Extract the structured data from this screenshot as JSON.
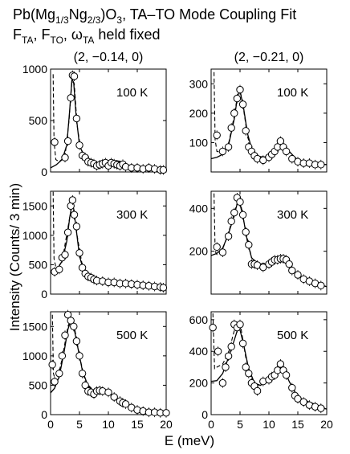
{
  "title": {
    "line1_prefix": "Pb(Mg",
    "line1_sub1": "1/3",
    "line1_mid1": "Ng",
    "line1_sub2": "2/3",
    "line1_mid2": ")O",
    "line1_sub3": "3",
    "line1_suffix": ", TA–TO Mode Coupling Fit",
    "line2_a": "F",
    "line2_sub_a": "TA",
    "line2_b": ", F",
    "line2_sub_b": "TO",
    "line2_c": ", ω",
    "line2_sub_c": "TA",
    "line2_d": " held fixed"
  },
  "columns": [
    "(2, −0.14, 0)",
    "(2, −0.21, 0)"
  ],
  "xlabel": "E (meV)",
  "ylabel": "Intensity (Counts/ 3 min)",
  "chart_data": [
    {
      "type": "scatter",
      "column": "(2, −0.14, 0)",
      "temperature": "100 K",
      "xlim": [
        0,
        20
      ],
      "ylim": [
        0,
        1000
      ],
      "yticks": [
        0,
        500,
        1000
      ],
      "xticks": [
        0,
        5,
        10,
        15,
        20
      ],
      "x": [
        0.7,
        2.5,
        3.0,
        3.5,
        3.8,
        4.1,
        4.5,
        5.0,
        5.5,
        6.0,
        6.5,
        7.0,
        7.5,
        8.0,
        8.5,
        9.0,
        9.5,
        10.0,
        10.5,
        11.0,
        11.5,
        12.0,
        12.5,
        13.0,
        14.0,
        15.0,
        16.0,
        17.0,
        18.0,
        19.0,
        19.5
      ],
      "y": [
        290,
        140,
        300,
        720,
        940,
        930,
        520,
        260,
        160,
        140,
        100,
        90,
        80,
        60,
        70,
        80,
        90,
        60,
        90,
        80,
        70,
        60,
        75,
        50,
        40,
        40,
        30,
        40,
        30,
        20,
        20
      ],
      "fit_solid": [
        [
          0,
          40
        ],
        [
          1,
          70
        ],
        [
          2,
          120
        ],
        [
          2.8,
          260
        ],
        [
          3.3,
          600
        ],
        [
          3.7,
          900
        ],
        [
          4.0,
          870
        ],
        [
          4.4,
          560
        ],
        [
          5.0,
          260
        ],
        [
          5.8,
          150
        ],
        [
          7,
          100
        ],
        [
          8,
          80
        ],
        [
          9,
          85
        ],
        [
          10,
          95
        ],
        [
          11,
          110
        ],
        [
          12,
          105
        ],
        [
          13,
          80
        ],
        [
          14,
          55
        ],
        [
          15,
          40
        ],
        [
          17,
          30
        ],
        [
          20,
          20
        ]
      ],
      "fit_dashed": [
        [
          0.45,
          950
        ],
        [
          0.6,
          300
        ],
        [
          0.9,
          120
        ],
        [
          1.5,
          100
        ],
        [
          2.5,
          150
        ],
        [
          3.2,
          500
        ],
        [
          3.7,
          880
        ],
        [
          4.1,
          860
        ],
        [
          4.6,
          450
        ],
        [
          5.2,
          230
        ],
        [
          6,
          150
        ],
        [
          7,
          100
        ],
        [
          9,
          80
        ],
        [
          11,
          100
        ],
        [
          12,
          95
        ],
        [
          14,
          55
        ],
        [
          16,
          35
        ],
        [
          20,
          20
        ]
      ]
    },
    {
      "type": "scatter",
      "column": "(2, −0.21, 0)",
      "temperature": "100 K",
      "xlim": [
        0,
        20
      ],
      "ylim": [
        0,
        350
      ],
      "yticks": [
        100,
        200,
        300
      ],
      "xticks": [
        0,
        5,
        10,
        15,
        20
      ],
      "x": [
        1,
        2,
        3,
        3.5,
        4,
        4.5,
        5,
        5.5,
        6,
        6.5,
        7,
        7.5,
        8,
        9,
        10,
        10.5,
        11,
        11.5,
        12,
        12.5,
        13,
        14,
        15,
        16,
        17,
        18,
        19
      ],
      "y": [
        125,
        70,
        85,
        150,
        200,
        250,
        280,
        230,
        140,
        85,
        70,
        55,
        45,
        40,
        50,
        60,
        70,
        85,
        105,
        85,
        70,
        45,
        35,
        30,
        30,
        25,
        25
      ],
      "fit_solid": [
        [
          0,
          45
        ],
        [
          1,
          50
        ],
        [
          2,
          60
        ],
        [
          3,
          90
        ],
        [
          4,
          180
        ],
        [
          4.6,
          260
        ],
        [
          5.0,
          275
        ],
        [
          5.6,
          220
        ],
        [
          6.3,
          130
        ],
        [
          7,
          80
        ],
        [
          8,
          55
        ],
        [
          9,
          50
        ],
        [
          10,
          55
        ],
        [
          11,
          75
        ],
        [
          12,
          98
        ],
        [
          12.6,
          95
        ],
        [
          13.5,
          70
        ],
        [
          15,
          40
        ],
        [
          17,
          30
        ],
        [
          20,
          25
        ]
      ],
      "fit_dashed": [
        [
          0.5,
          340
        ],
        [
          0.7,
          110
        ],
        [
          1,
          70
        ],
        [
          2,
          65
        ],
        [
          3,
          95
        ],
        [
          4,
          190
        ],
        [
          4.6,
          265
        ],
        [
          5.0,
          280
        ],
        [
          5.6,
          215
        ],
        [
          6.3,
          120
        ],
        [
          7,
          75
        ],
        [
          8,
          50
        ],
        [
          10,
          55
        ],
        [
          12,
          100
        ],
        [
          13.5,
          70
        ],
        [
          15,
          40
        ],
        [
          20,
          25
        ]
      ]
    },
    {
      "type": "scatter",
      "column": "(2, −0.14, 0)",
      "temperature": "300 K",
      "xlim": [
        0,
        20
      ],
      "ylim": [
        0,
        1750
      ],
      "yticks": [
        0,
        500,
        1000,
        1500
      ],
      "xticks": [
        0,
        5,
        10,
        15,
        20
      ],
      "x": [
        0.7,
        1.5,
        2.0,
        2.5,
        3.0,
        3.5,
        3.8,
        4.1,
        4.5,
        5.0,
        5.5,
        6.0,
        6.5,
        7.0,
        7.5,
        8.0,
        9.0,
        10.0,
        11.0,
        12.0,
        13.0,
        14.0,
        15.0,
        16.0,
        17.0,
        18.0,
        19.0,
        19.5
      ],
      "y": [
        380,
        420,
        620,
        670,
        1050,
        1500,
        1600,
        1350,
        1150,
        700,
        450,
        350,
        300,
        280,
        250,
        230,
        220,
        200,
        200,
        180,
        180,
        170,
        160,
        150,
        140,
        130,
        120,
        110
      ],
      "fit_solid": [
        [
          0,
          360
        ],
        [
          1,
          400
        ],
        [
          2,
          560
        ],
        [
          2.8,
          900
        ],
        [
          3.3,
          1300
        ],
        [
          3.7,
          1520
        ],
        [
          4.0,
          1450
        ],
        [
          4.5,
          1050
        ],
        [
          5.0,
          650
        ],
        [
          5.7,
          400
        ],
        [
          6.5,
          300
        ],
        [
          8,
          230
        ],
        [
          10,
          200
        ],
        [
          12,
          185
        ],
        [
          15,
          160
        ],
        [
          20,
          110
        ]
      ],
      "fit_dashed": [
        [
          0.45,
          1740
        ],
        [
          0.6,
          600
        ],
        [
          1,
          420
        ],
        [
          2,
          560
        ],
        [
          3.3,
          1300
        ],
        [
          3.8,
          1550
        ],
        [
          4.5,
          1050
        ],
        [
          5.5,
          480
        ],
        [
          7,
          280
        ],
        [
          10,
          200
        ],
        [
          15,
          160
        ],
        [
          20,
          110
        ]
      ]
    },
    {
      "type": "scatter",
      "column": "(2, −0.21, 0)",
      "temperature": "300 K",
      "xlim": [
        0,
        20
      ],
      "ylim": [
        0,
        480
      ],
      "yticks": [
        200,
        400
      ],
      "xticks": [
        0,
        5,
        10,
        15,
        20
      ],
      "x": [
        1,
        2,
        3,
        3.5,
        4,
        4.5,
        5,
        5.5,
        6,
        6.5,
        7,
        7.5,
        8,
        9,
        10,
        10.5,
        11,
        11.5,
        12,
        12.5,
        13,
        13.5,
        14,
        15,
        16,
        17,
        18,
        19
      ],
      "y": [
        220,
        195,
        270,
        340,
        380,
        450,
        430,
        370,
        290,
        230,
        140,
        140,
        135,
        125,
        140,
        150,
        160,
        160,
        165,
        165,
        160,
        140,
        110,
        90,
        70,
        60,
        50,
        40
      ],
      "fit_solid": [
        [
          0,
          180
        ],
        [
          1,
          190
        ],
        [
          2,
          215
        ],
        [
          3,
          280
        ],
        [
          4,
          370
        ],
        [
          4.6,
          430
        ],
        [
          5.0,
          420
        ],
        [
          5.6,
          350
        ],
        [
          6.3,
          240
        ],
        [
          7,
          170
        ],
        [
          8,
          140
        ],
        [
          9,
          135
        ],
        [
          10,
          145
        ],
        [
          11,
          160
        ],
        [
          12,
          165
        ],
        [
          13,
          150
        ],
        [
          14,
          115
        ],
        [
          15,
          85
        ],
        [
          17,
          55
        ],
        [
          20,
          35
        ]
      ],
      "fit_dashed": [
        [
          0.5,
          470
        ],
        [
          0.7,
          200
        ],
        [
          1,
          185
        ],
        [
          2,
          210
        ],
        [
          3,
          285
        ],
        [
          4,
          380
        ],
        [
          4.7,
          440
        ],
        [
          5.2,
          410
        ],
        [
          6,
          290
        ],
        [
          7,
          170
        ],
        [
          8,
          140
        ],
        [
          10,
          145
        ],
        [
          12,
          165
        ],
        [
          14,
          115
        ],
        [
          16,
          70
        ],
        [
          20,
          35
        ]
      ]
    },
    {
      "type": "scatter",
      "column": "(2, −0.14, 0)",
      "temperature": "500 K",
      "xlim": [
        0,
        20
      ],
      "ylim": [
        0,
        1750
      ],
      "yticks": [
        0,
        500,
        1000,
        1500
      ],
      "xticks": [
        0,
        5,
        10,
        15,
        20
      ],
      "x": [
        0.3,
        0.7,
        1.5,
        2.0,
        2.5,
        3.0,
        3.5,
        4.0,
        4.5,
        5.0,
        5.5,
        6.0,
        6.5,
        7.0,
        7.5,
        8.0,
        8.5,
        9.0,
        10.0,
        11.0,
        12.0,
        12.5,
        13.0,
        14.0,
        15.0,
        16.0,
        17.0,
        18.0,
        19.0,
        20.0
      ],
      "y": [
        850,
        560,
        700,
        1000,
        1350,
        1700,
        1600,
        1500,
        1250,
        1000,
        700,
        500,
        400,
        380,
        350,
        400,
        410,
        400,
        380,
        300,
        230,
        200,
        180,
        120,
        80,
        60,
        40,
        40,
        30,
        30
      ],
      "fit_solid": [
        [
          0,
          370
        ],
        [
          0.7,
          450
        ],
        [
          1.5,
          650
        ],
        [
          2.3,
          1050
        ],
        [
          3.0,
          1450
        ],
        [
          3.5,
          1600
        ],
        [
          4.0,
          1500
        ],
        [
          4.7,
          1150
        ],
        [
          5.5,
          750
        ],
        [
          6.5,
          480
        ],
        [
          7.5,
          400
        ],
        [
          8.5,
          410
        ],
        [
          9.5,
          390
        ],
        [
          11,
          300
        ],
        [
          12,
          230
        ],
        [
          13,
          170
        ],
        [
          15,
          80
        ],
        [
          17,
          40
        ],
        [
          20,
          25
        ]
      ],
      "fit_dashed": [
        [
          0.3,
          1700
        ],
        [
          0.5,
          700
        ],
        [
          1,
          520
        ],
        [
          2,
          950
        ],
        [
          3,
          1500
        ],
        [
          3.5,
          1620
        ],
        [
          4.2,
          1450
        ],
        [
          5,
          1000
        ],
        [
          6,
          560
        ],
        [
          7.5,
          400
        ],
        [
          8.5,
          420
        ],
        [
          10,
          370
        ],
        [
          12,
          230
        ],
        [
          15,
          80
        ],
        [
          20,
          25
        ]
      ]
    },
    {
      "type": "scatter",
      "column": "(2, −0.21, 0)",
      "temperature": "500 K",
      "xlim": [
        0,
        20
      ],
      "ylim": [
        0,
        650
      ],
      "yticks": [
        0,
        200,
        400,
        600
      ],
      "xticks": [
        0,
        5,
        10,
        15,
        20
      ],
      "x": [
        0.3,
        1.2,
        2.0,
        2.5,
        3.0,
        3.5,
        4.0,
        4.5,
        5.0,
        5.5,
        6.0,
        6.5,
        7.0,
        7.5,
        8.0,
        9.0,
        10.0,
        10.5,
        11.0,
        11.5,
        12.0,
        12.5,
        13.0,
        14.0,
        14.5,
        15.0,
        16.0,
        17.0,
        18.0,
        19.0
      ],
      "y": [
        550,
        400,
        200,
        300,
        370,
        430,
        570,
        550,
        570,
        450,
        300,
        260,
        200,
        180,
        150,
        210,
        220,
        240,
        250,
        280,
        320,
        280,
        250,
        170,
        120,
        100,
        80,
        60,
        50,
        40
      ],
      "fit_solid": [
        [
          0,
          210
        ],
        [
          1,
          215
        ],
        [
          2,
          260
        ],
        [
          3,
          360
        ],
        [
          4,
          470
        ],
        [
          4.6,
          540
        ],
        [
          5.0,
          535
        ],
        [
          5.7,
          430
        ],
        [
          6.5,
          290
        ],
        [
          7.5,
          200
        ],
        [
          8.5,
          185
        ],
        [
          9.5,
          205
        ],
        [
          10.5,
          245
        ],
        [
          11.5,
          300
        ],
        [
          12,
          310
        ],
        [
          12.7,
          280
        ],
        [
          13.5,
          210
        ],
        [
          15,
          110
        ],
        [
          17,
          60
        ],
        [
          20,
          35
        ]
      ],
      "fit_dashed": [
        [
          0.3,
          640
        ],
        [
          0.6,
          290
        ],
        [
          1,
          300
        ],
        [
          2,
          320
        ],
        [
          3,
          390
        ],
        [
          4,
          530
        ],
        [
          4.6,
          580
        ],
        [
          5.2,
          540
        ],
        [
          6,
          360
        ],
        [
          7,
          230
        ],
        [
          8,
          185
        ],
        [
          10,
          215
        ],
        [
          12,
          310
        ],
        [
          13.5,
          210
        ],
        [
          15,
          110
        ],
        [
          20,
          35
        ]
      ]
    }
  ]
}
